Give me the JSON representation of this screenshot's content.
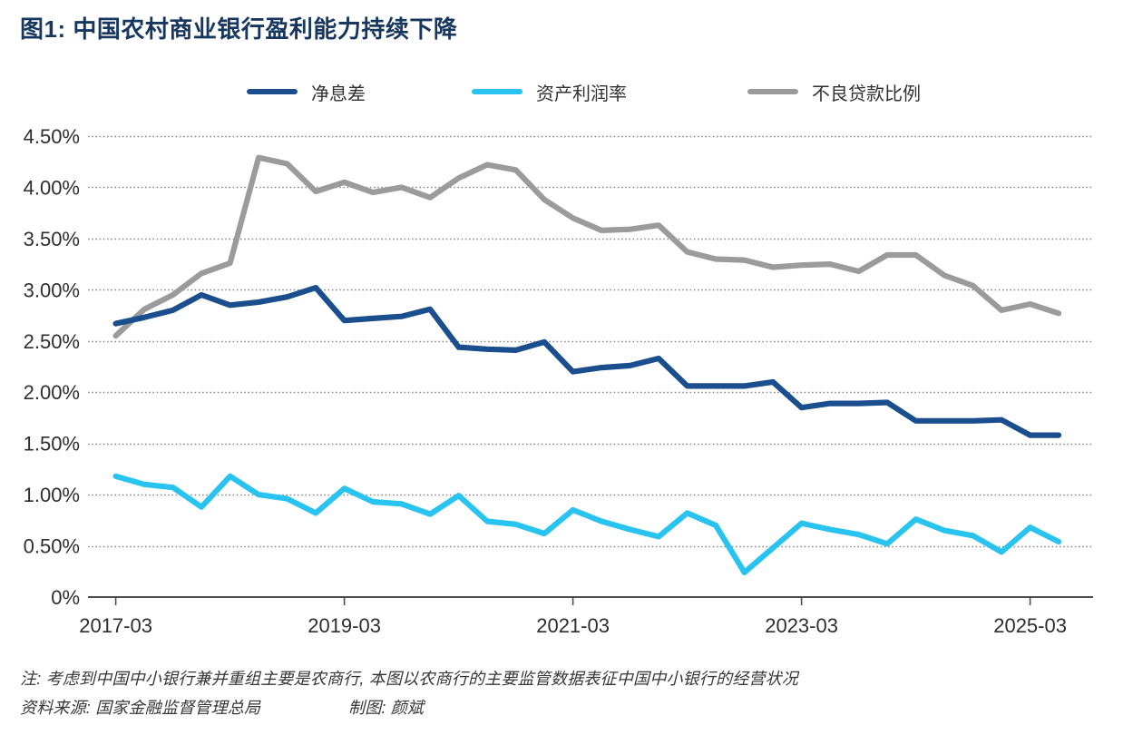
{
  "title": "图1: 中国农村商业银行盈利能力持续下降",
  "notes": {
    "note": "注: 考虑到中国中小银行兼并重组主要是农商行, 本图以农商行的主要监管数据表征中国中小银行的经营状况",
    "source": "资料来源: 国家金融监督管理总局",
    "credit": "制图: 颜斌"
  },
  "colors": {
    "title": "#17375e",
    "axis_text": "#2e2e2e",
    "grid": "#8a8a8a",
    "axis_line": "#4d4d4d"
  },
  "chart_data": {
    "type": "line",
    "title": "图1: 中国农村商业银行盈利能力持续下降",
    "xlabel": "",
    "ylabel": "",
    "ylim": [
      0,
      4.5
    ],
    "grid": "horizontal-dotted",
    "legend_position": "top",
    "x": [
      "2017-03",
      "2017-06",
      "2017-09",
      "2017-12",
      "2018-03",
      "2018-06",
      "2018-09",
      "2018-12",
      "2019-03",
      "2019-06",
      "2019-09",
      "2019-12",
      "2020-03",
      "2020-06",
      "2020-09",
      "2020-12",
      "2021-03",
      "2021-06",
      "2021-09",
      "2021-12",
      "2022-03",
      "2022-06",
      "2022-09",
      "2022-12",
      "2023-03",
      "2023-06",
      "2023-09",
      "2023-12",
      "2024-03",
      "2024-06",
      "2024-09",
      "2024-12",
      "2025-03",
      "2025-06"
    ],
    "y_ticks": [
      {
        "value": 4.5,
        "label": "4.50%"
      },
      {
        "value": 4.0,
        "label": "4.00%"
      },
      {
        "value": 3.5,
        "label": "3.50%"
      },
      {
        "value": 3.0,
        "label": "3.00%"
      },
      {
        "value": 2.5,
        "label": "2.50%"
      },
      {
        "value": 2.0,
        "label": "2.00%"
      },
      {
        "value": 1.5,
        "label": "1.50%"
      },
      {
        "value": 1.0,
        "label": "1.00%"
      },
      {
        "value": 0.5,
        "label": "0.50%"
      },
      {
        "value": 0.0,
        "label": "0%"
      }
    ],
    "x_ticks": [
      {
        "index": 0,
        "label": "2017-03"
      },
      {
        "index": 8,
        "label": "2019-03"
      },
      {
        "index": 16,
        "label": "2021-03"
      },
      {
        "index": 24,
        "label": "2023-03"
      },
      {
        "index": 32,
        "label": "2025-03"
      }
    ],
    "series": [
      {
        "key": "nim",
        "name": "净息差",
        "color": "#1b4e8c",
        "values": [
          2.67,
          2.73,
          2.8,
          2.95,
          2.85,
          2.88,
          2.93,
          3.02,
          2.7,
          2.72,
          2.74,
          2.81,
          2.44,
          2.42,
          2.41,
          2.49,
          2.2,
          2.24,
          2.26,
          2.33,
          2.06,
          2.06,
          2.06,
          2.1,
          1.85,
          1.89,
          1.89,
          1.9,
          1.72,
          1.72,
          1.72,
          1.73,
          1.58,
          1.58
        ]
      },
      {
        "key": "roa",
        "name": "资产利润率",
        "color": "#29c3ef",
        "values": [
          1.18,
          1.1,
          1.07,
          0.88,
          1.18,
          1.0,
          0.96,
          0.82,
          1.06,
          0.93,
          0.91,
          0.81,
          0.99,
          0.74,
          0.71,
          0.62,
          0.85,
          0.74,
          0.66,
          0.59,
          0.82,
          0.7,
          0.24,
          0.48,
          0.72,
          0.66,
          0.61,
          0.52,
          0.76,
          0.65,
          0.6,
          0.44,
          0.68,
          0.54
        ]
      },
      {
        "key": "npl",
        "name": "不良贷款比例",
        "color": "#9b9b9b",
        "values": [
          2.55,
          2.81,
          2.95,
          3.16,
          3.26,
          4.29,
          4.23,
          3.96,
          4.05,
          3.95,
          4.0,
          3.9,
          4.09,
          4.22,
          4.17,
          3.88,
          3.7,
          3.58,
          3.59,
          3.63,
          3.37,
          3.3,
          3.29,
          3.22,
          3.24,
          3.25,
          3.18,
          3.34,
          3.34,
          3.14,
          3.04,
          2.8,
          2.86,
          2.77
        ]
      }
    ]
  }
}
